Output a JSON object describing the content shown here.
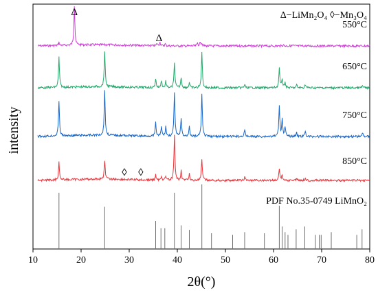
{
  "chart_data": {
    "type": "line",
    "xlabel": "2θ(°)",
    "ylabel": "intensity",
    "xlim": [
      10,
      80
    ],
    "xticks": [
      10,
      20,
      30,
      40,
      50,
      60,
      70,
      80
    ],
    "legend_text": "Δ−LiMn₂O₄ ◊−Mn₃O₄",
    "series": [
      {
        "name": "550°C",
        "color": "#d03cd8",
        "baseline": 0.0,
        "peaks": [
          [
            15.4,
            0.08
          ],
          [
            18.6,
            1.0
          ],
          [
            35.8,
            0.06
          ],
          [
            36.4,
            0.09
          ],
          [
            37.5,
            0.05
          ],
          [
            44.2,
            0.07
          ],
          [
            44.8,
            0.1
          ],
          [
            45.1,
            0.06
          ],
          [
            62.0,
            0.03
          ],
          [
            64.0,
            0.02
          ]
        ]
      },
      {
        "name": "650°C",
        "color": "#21a86a",
        "baseline": 0.0,
        "peaks": [
          [
            15.4,
            0.85
          ],
          [
            24.9,
            1.0
          ],
          [
            35.5,
            0.25
          ],
          [
            36.7,
            0.2
          ],
          [
            37.6,
            0.18
          ],
          [
            39.4,
            0.7
          ],
          [
            40.8,
            0.3
          ],
          [
            42.5,
            0.15
          ],
          [
            45.1,
            1.0
          ],
          [
            54.0,
            0.1
          ],
          [
            61.2,
            0.55
          ],
          [
            61.8,
            0.25
          ],
          [
            62.4,
            0.15
          ],
          [
            64.8,
            0.08
          ],
          [
            66.6,
            0.1
          ],
          [
            78.5,
            0.06
          ]
        ]
      },
      {
        "name": "750°C",
        "color": "#1766c9",
        "baseline": 0.0,
        "peaks": [
          [
            15.4,
            0.8
          ],
          [
            24.9,
            1.0
          ],
          [
            35.5,
            0.3
          ],
          [
            36.7,
            0.22
          ],
          [
            37.6,
            0.22
          ],
          [
            39.4,
            1.0
          ],
          [
            40.8,
            0.4
          ],
          [
            42.5,
            0.25
          ],
          [
            45.1,
            0.95
          ],
          [
            54.0,
            0.15
          ],
          [
            61.2,
            0.7
          ],
          [
            61.8,
            0.4
          ],
          [
            62.4,
            0.2
          ],
          [
            64.8,
            0.1
          ],
          [
            66.6,
            0.12
          ],
          [
            78.5,
            0.08
          ]
        ]
      },
      {
        "name": "850°C",
        "color": "#e8343a",
        "baseline": 0.0,
        "peaks": [
          [
            15.4,
            0.4
          ],
          [
            24.9,
            0.43
          ],
          [
            35.5,
            0.12
          ],
          [
            36.7,
            0.1
          ],
          [
            37.6,
            0.1
          ],
          [
            39.4,
            1.0
          ],
          [
            40.8,
            0.22
          ],
          [
            42.5,
            0.14
          ],
          [
            45.1,
            0.48
          ],
          [
            54.0,
            0.07
          ],
          [
            61.2,
            0.28
          ],
          [
            61.8,
            0.12
          ],
          [
            64.8,
            0.06
          ],
          [
            66.6,
            0.06
          ]
        ]
      }
    ],
    "reference": {
      "name": "PDF No.35-0749 LiMnO₂",
      "color": "#6e6e6e",
      "lines": [
        [
          15.4,
          1.0
        ],
        [
          24.9,
          0.75
        ],
        [
          35.5,
          0.5
        ],
        [
          36.6,
          0.37
        ],
        [
          37.4,
          0.37
        ],
        [
          39.4,
          1.0
        ],
        [
          40.8,
          0.42
        ],
        [
          42.5,
          0.34
        ],
        [
          45.1,
          1.15
        ],
        [
          47.1,
          0.28
        ],
        [
          51.5,
          0.25
        ],
        [
          54.0,
          0.3
        ],
        [
          58.1,
          0.28
        ],
        [
          61.2,
          0.77
        ],
        [
          61.8,
          0.4
        ],
        [
          62.4,
          0.3
        ],
        [
          63.0,
          0.25
        ],
        [
          64.7,
          0.35
        ],
        [
          66.5,
          0.4
        ],
        [
          68.7,
          0.25
        ],
        [
          69.5,
          0.25
        ],
        [
          69.9,
          0.25
        ],
        [
          72.0,
          0.3
        ],
        [
          77.3,
          0.25
        ],
        [
          78.4,
          0.35
        ]
      ]
    },
    "annotations": [
      {
        "text": "Δ",
        "x": 18.6,
        "series": "550°C"
      },
      {
        "text": "Δ",
        "x": 36.2,
        "series": "550°C"
      },
      {
        "text": "◊",
        "x": 29.0,
        "series": "850°C"
      },
      {
        "text": "◊",
        "x": 32.4,
        "series": "850°C"
      }
    ]
  }
}
